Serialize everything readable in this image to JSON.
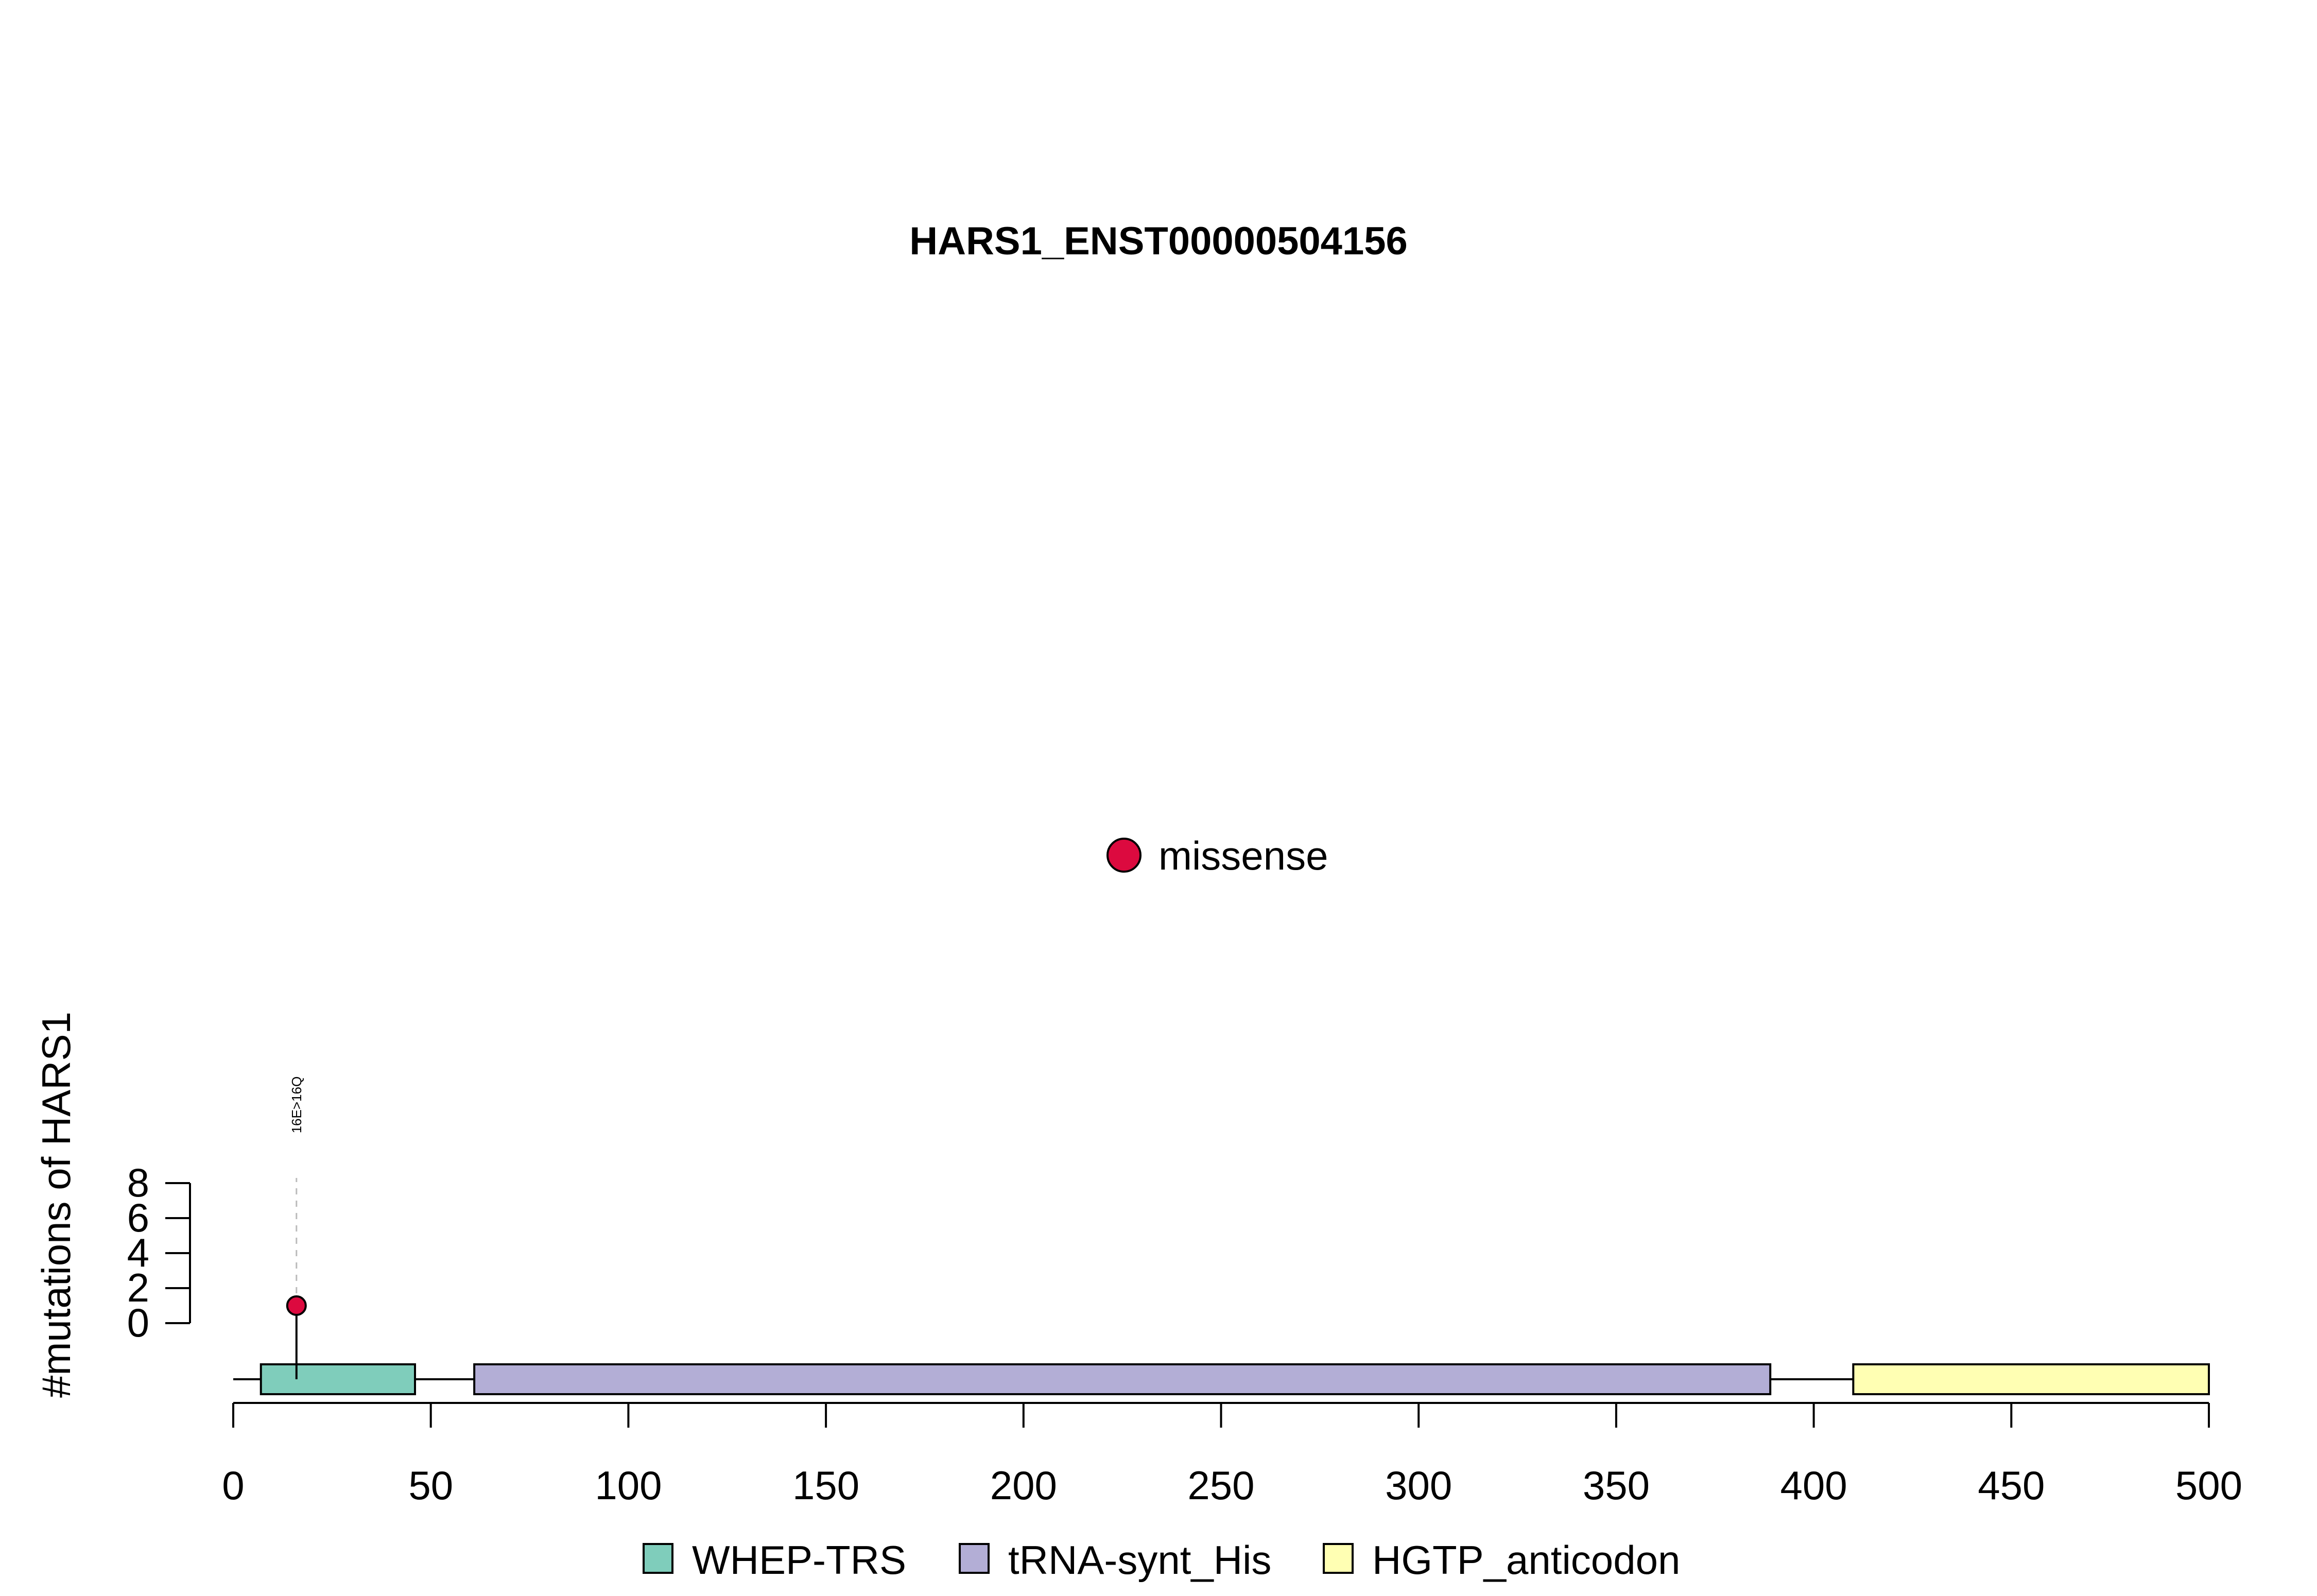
{
  "chart_data": {
    "type": "lollipop",
    "title": "HARS1_ENST00000504156",
    "ylabel": "#mutations of HARS1",
    "xlim": [
      0,
      500
    ],
    "x_ticks": [
      0,
      50,
      100,
      150,
      200,
      250,
      300,
      350,
      400,
      450,
      500
    ],
    "y_ticks": [
      0,
      2,
      4,
      6,
      8
    ],
    "ylim": [
      0,
      8
    ],
    "protein_length": 500,
    "domains": [
      {
        "name": "WHEP-TRS",
        "start": 7,
        "end": 46,
        "color": "#7fcdbb"
      },
      {
        "name": "tRNA-synt_His",
        "start": 61,
        "end": 389,
        "color": "#b3aed6"
      },
      {
        "name": "HGTP_anticodon",
        "start": 410,
        "end": 500,
        "color": "#ffffb3"
      }
    ],
    "mutations": [
      {
        "position": 16,
        "count": 1,
        "label": "16E>16Q",
        "type": "missense"
      }
    ],
    "mutation_types": [
      {
        "name": "missense",
        "color": "#dc0a3f"
      }
    ],
    "legend_position": "bottom"
  }
}
